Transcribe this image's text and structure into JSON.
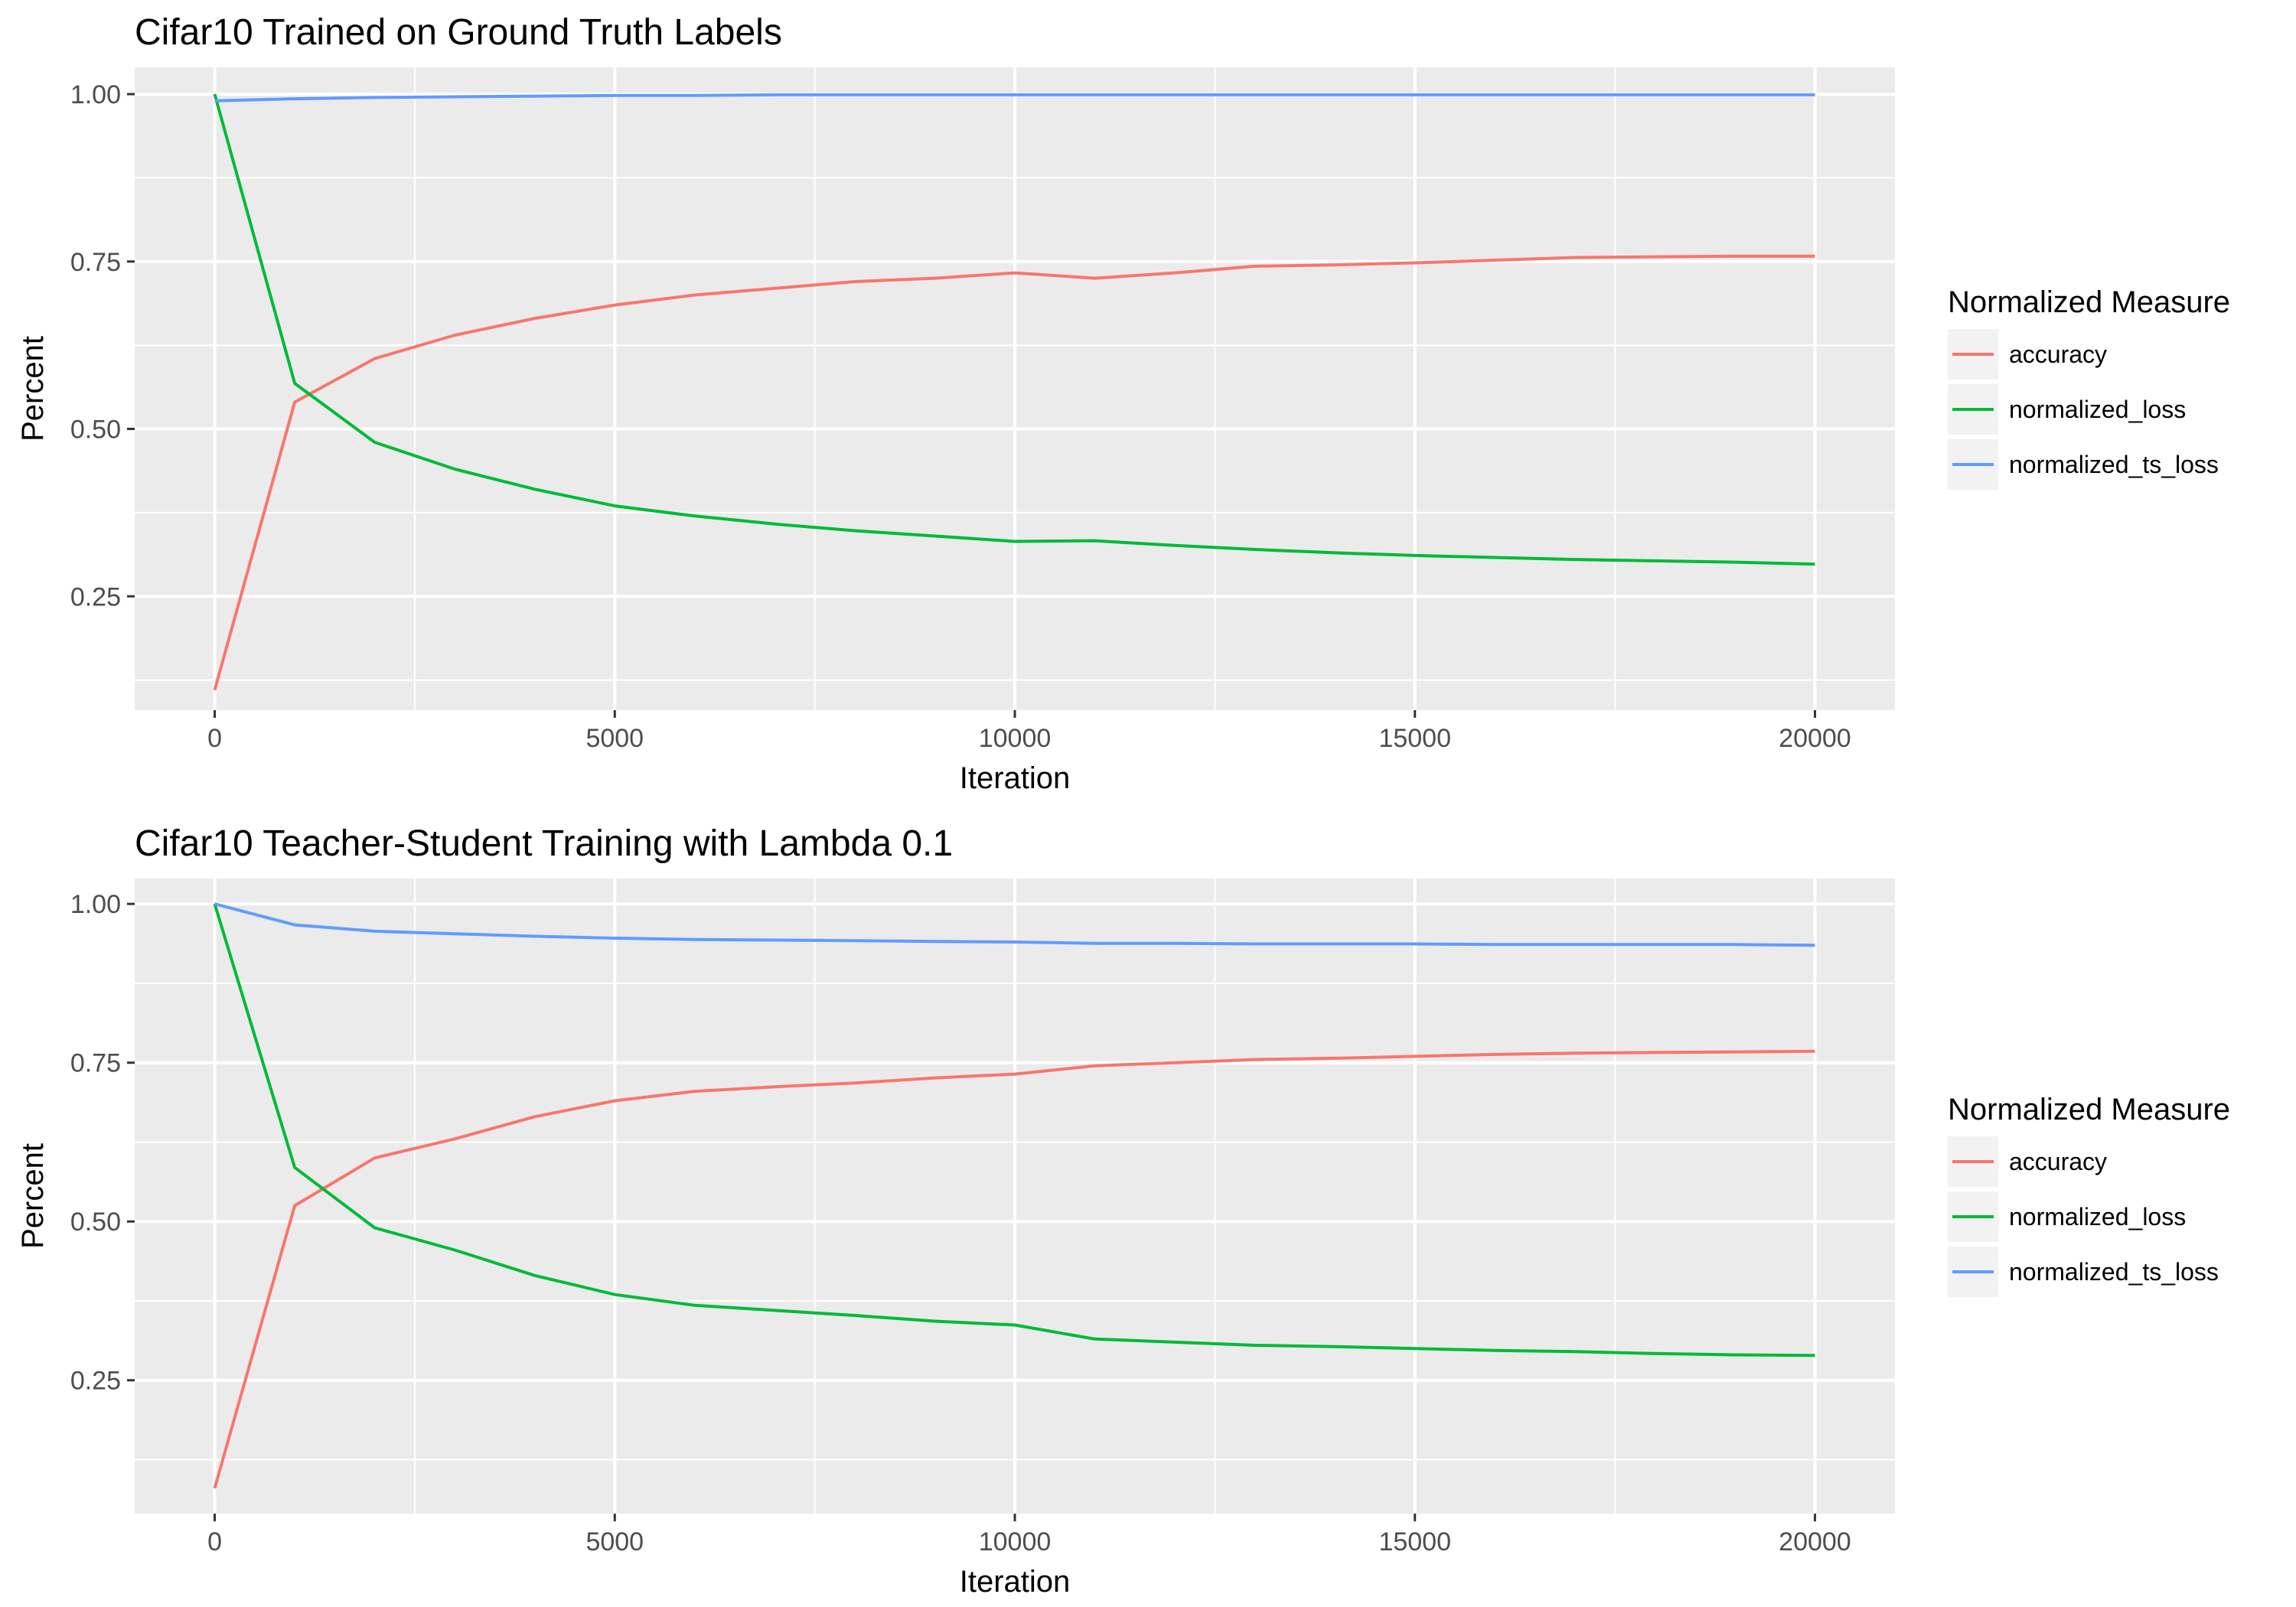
{
  "chart_data": [
    {
      "type": "line",
      "title": "Cifar10 Trained on Ground Truth Labels",
      "xlabel": "Iteration",
      "ylabel": "Percent",
      "xlim": [
        -1000,
        21000
      ],
      "ylim": [
        0.08,
        1.04
      ],
      "x_ticks": [
        0,
        5000,
        10000,
        15000,
        20000
      ],
      "x_tick_labels": [
        "0",
        "5000",
        "10000",
        "15000",
        "20000"
      ],
      "y_ticks": [
        0.25,
        0.5,
        0.75,
        1.0
      ],
      "y_tick_labels": [
        "0.25",
        "0.50",
        "0.75",
        "1.00"
      ],
      "grid": true,
      "legend": {
        "title": "Normalized Measure",
        "position": "right"
      },
      "x": [
        0,
        1000,
        2000,
        3000,
        4000,
        5000,
        6000,
        7000,
        8000,
        9000,
        10000,
        11000,
        12000,
        13000,
        14000,
        15000,
        16000,
        17000,
        18000,
        19000,
        20000
      ],
      "series": [
        {
          "name": "accuracy",
          "color": "#F8766D",
          "values": [
            0.11,
            0.54,
            0.605,
            0.64,
            0.665,
            0.685,
            0.7,
            0.71,
            0.72,
            0.725,
            0.733,
            0.725,
            0.733,
            0.743,
            0.745,
            0.748,
            0.752,
            0.756,
            0.757,
            0.758,
            0.758
          ]
        },
        {
          "name": "normalized_loss",
          "color": "#00BA38",
          "values": [
            1.0,
            0.568,
            0.48,
            0.44,
            0.41,
            0.385,
            0.37,
            0.358,
            0.348,
            0.34,
            0.332,
            0.333,
            0.326,
            0.32,
            0.315,
            0.311,
            0.308,
            0.305,
            0.303,
            0.301,
            0.298
          ]
        },
        {
          "name": "normalized_ts_loss",
          "color": "#619CFF",
          "values": [
            0.99,
            0.993,
            0.995,
            0.996,
            0.997,
            0.998,
            0.998,
            0.999,
            0.999,
            0.999,
            0.999,
            0.999,
            0.999,
            0.999,
            0.999,
            0.999,
            0.999,
            0.999,
            0.999,
            0.999,
            0.999
          ]
        }
      ]
    },
    {
      "type": "line",
      "title": "Cifar10 Teacher-Student Training with Lambda 0.1",
      "xlabel": "Iteration",
      "ylabel": "Percent",
      "xlim": [
        -1000,
        21000
      ],
      "ylim": [
        0.04,
        1.04
      ],
      "x_ticks": [
        0,
        5000,
        10000,
        15000,
        20000
      ],
      "x_tick_labels": [
        "0",
        "5000",
        "10000",
        "15000",
        "20000"
      ],
      "y_ticks": [
        0.25,
        0.5,
        0.75,
        1.0
      ],
      "y_tick_labels": [
        "0.25",
        "0.50",
        "0.75",
        "1.00"
      ],
      "grid": true,
      "legend": {
        "title": "Normalized Measure",
        "position": "right"
      },
      "x": [
        0,
        1000,
        2000,
        3000,
        4000,
        5000,
        6000,
        7000,
        8000,
        9000,
        10000,
        11000,
        12000,
        13000,
        14000,
        15000,
        16000,
        17000,
        18000,
        19000,
        20000
      ],
      "series": [
        {
          "name": "accuracy",
          "color": "#F8766D",
          "values": [
            0.08,
            0.525,
            0.6,
            0.63,
            0.665,
            0.69,
            0.705,
            0.712,
            0.718,
            0.726,
            0.732,
            0.745,
            0.75,
            0.755,
            0.757,
            0.76,
            0.763,
            0.765,
            0.766,
            0.767,
            0.768
          ]
        },
        {
          "name": "normalized_loss",
          "color": "#00BA38",
          "values": [
            1.0,
            0.585,
            0.49,
            0.455,
            0.415,
            0.385,
            0.368,
            0.36,
            0.352,
            0.343,
            0.337,
            0.315,
            0.31,
            0.305,
            0.303,
            0.3,
            0.297,
            0.295,
            0.292,
            0.29,
            0.289
          ]
        },
        {
          "name": "normalized_ts_loss",
          "color": "#619CFF",
          "values": [
            1.0,
            0.967,
            0.957,
            0.953,
            0.949,
            0.946,
            0.944,
            0.943,
            0.942,
            0.941,
            0.94,
            0.938,
            0.938,
            0.937,
            0.937,
            0.937,
            0.936,
            0.936,
            0.936,
            0.936,
            0.935
          ]
        }
      ]
    }
  ]
}
